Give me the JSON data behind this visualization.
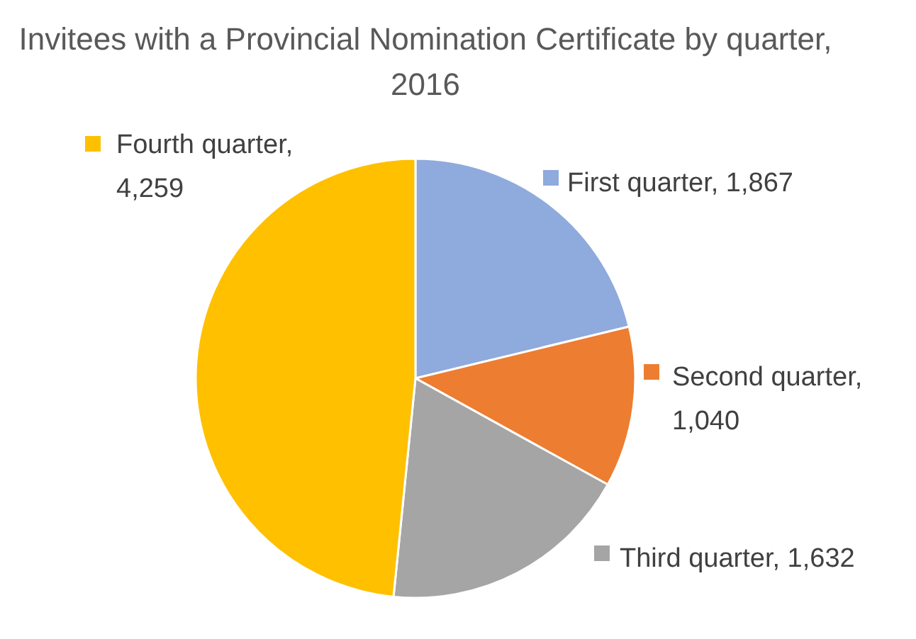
{
  "chart_data": {
    "type": "pie",
    "title": "Invitees with a Provincial Nomination Certificate by quarter, 2016",
    "categories": [
      "First quarter",
      "Second quarter",
      "Third quarter",
      "Fourth quarter"
    ],
    "values": [
      1867,
      1040,
      1632,
      4259
    ],
    "value_labels": [
      ", 1,867",
      ", 1,040",
      ", 1,632",
      ", 4,259"
    ],
    "colors": [
      "#8faadc",
      "#ed7d31",
      "#a5a5a5",
      "#ffc000"
    ],
    "data_labels": true,
    "legend": "right"
  }
}
